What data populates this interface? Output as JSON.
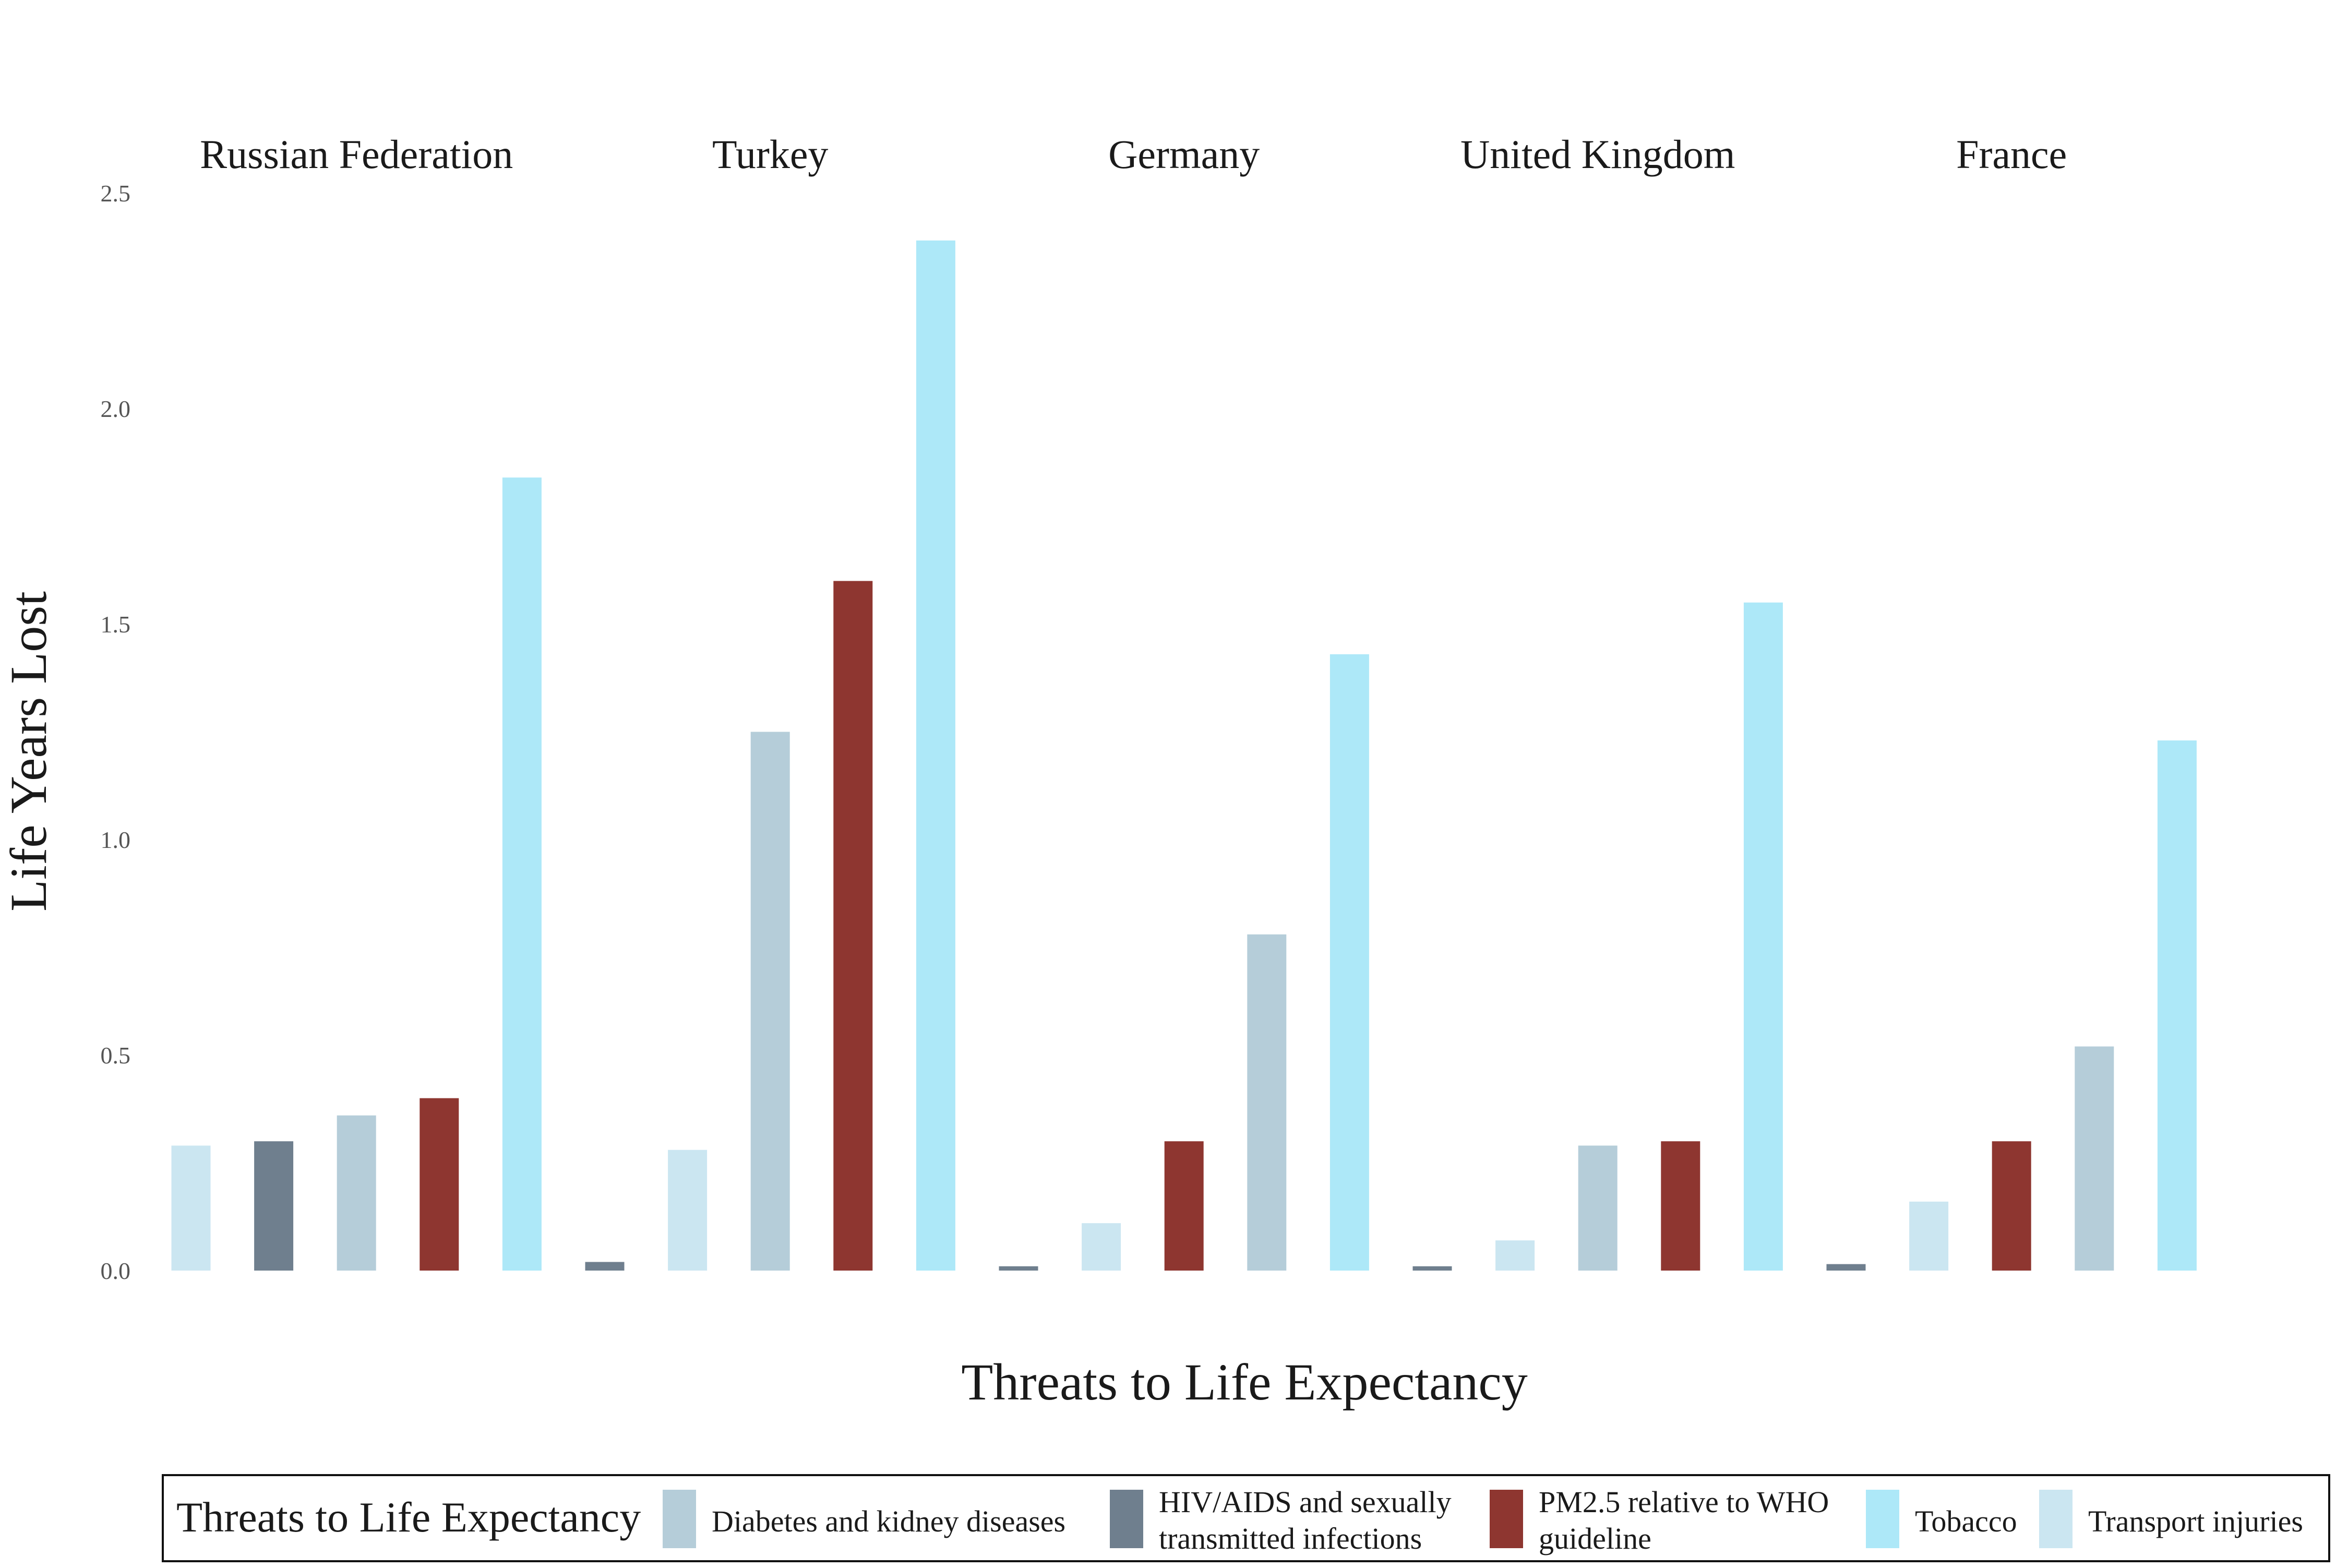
{
  "chart_data": {
    "type": "bar",
    "xlabel": "Threats to Life Expectancy",
    "ylabel": "Life Years Lost",
    "ylim": [
      0,
      2.5
    ],
    "yticks": [
      "0.0",
      "0.5",
      "1.0",
      "1.5",
      "2.0",
      "2.5"
    ],
    "grid": false,
    "legend": {
      "position": "bottom",
      "title": "Threats to Life Expectancy",
      "entries": [
        {
          "key": "diabetes",
          "label_lines": [
            "Diabetes and kidney diseases"
          ],
          "color": "#B5CDD9"
        },
        {
          "key": "hiv",
          "label_lines": [
            "HIV/AIDS and sexually",
            "transmitted infections"
          ],
          "color": "#6F7F8E"
        },
        {
          "key": "pm25",
          "label_lines": [
            "PM2.5 relative to WHO",
            "guideline"
          ],
          "color": "#8E3630"
        },
        {
          "key": "tobacco",
          "label_lines": [
            "Tobacco"
          ],
          "color": "#ADE8F8"
        },
        {
          "key": "transport",
          "label_lines": [
            "Transport injuries"
          ],
          "color": "#CBE6F1"
        }
      ]
    },
    "facets": [
      {
        "country": "Russian Federation",
        "bars": [
          {
            "threat": "transport",
            "value": 0.29
          },
          {
            "threat": "hiv",
            "value": 0.3
          },
          {
            "threat": "diabetes",
            "value": 0.36
          },
          {
            "threat": "pm25",
            "value": 0.4
          },
          {
            "threat": "tobacco",
            "value": 1.84
          }
        ]
      },
      {
        "country": "Turkey",
        "bars": [
          {
            "threat": "hiv",
            "value": 0.02
          },
          {
            "threat": "transport",
            "value": 0.28
          },
          {
            "threat": "diabetes",
            "value": 1.25
          },
          {
            "threat": "pm25",
            "value": 1.6
          },
          {
            "threat": "tobacco",
            "value": 2.39
          }
        ]
      },
      {
        "country": "Germany",
        "bars": [
          {
            "threat": "hiv",
            "value": 0.01
          },
          {
            "threat": "transport",
            "value": 0.11
          },
          {
            "threat": "pm25",
            "value": 0.3
          },
          {
            "threat": "diabetes",
            "value": 0.78
          },
          {
            "threat": "tobacco",
            "value": 1.43
          }
        ]
      },
      {
        "country": "United Kingdom",
        "bars": [
          {
            "threat": "hiv",
            "value": 0.01
          },
          {
            "threat": "transport",
            "value": 0.07
          },
          {
            "threat": "diabetes",
            "value": 0.29
          },
          {
            "threat": "pm25",
            "value": 0.3
          },
          {
            "threat": "tobacco",
            "value": 1.55
          }
        ]
      },
      {
        "country": "France",
        "bars": [
          {
            "threat": "hiv",
            "value": 0.015
          },
          {
            "threat": "transport",
            "value": 0.16
          },
          {
            "threat": "pm25",
            "value": 0.3
          },
          {
            "threat": "diabetes",
            "value": 0.52
          },
          {
            "threat": "tobacco",
            "value": 1.23
          }
        ]
      }
    ]
  }
}
